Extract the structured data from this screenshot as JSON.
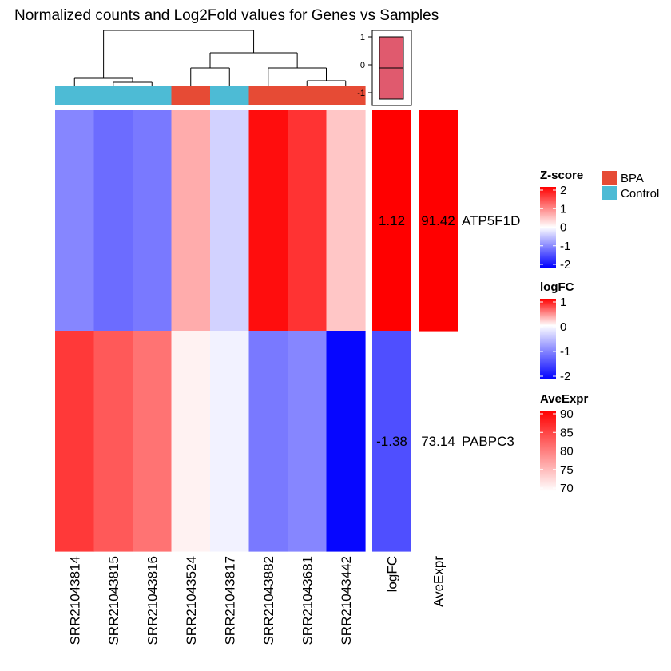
{
  "chart_data": {
    "type": "heatmap",
    "title": "Normalized counts and Log2Fold values for Genes vs Samples",
    "samples": [
      "SRR21043814",
      "SRR21043815",
      "SRR21043816",
      "SRR21043524",
      "SRR21043817",
      "SRR21043882",
      "SRR21043681",
      "SRR21043442"
    ],
    "sample_groups": [
      "Control",
      "Control",
      "Control",
      "BPA",
      "Control",
      "BPA",
      "BPA",
      "BPA"
    ],
    "genes": [
      "ATP5F1D",
      "PABPC3"
    ],
    "zscores": [
      [
        -0.95,
        -1.15,
        -1.05,
        0.65,
        -0.35,
        1.9,
        1.6,
        0.45
      ],
      [
        1.55,
        1.3,
        1.1,
        0.1,
        -0.1,
        -1.05,
        -0.95,
        -1.95
      ]
    ],
    "stat_columns": [
      "logFC",
      "AveExpr"
    ],
    "logFC": [
      1.12,
      -1.38
    ],
    "logFC_labels": [
      "1.12",
      "-1.38"
    ],
    "AveExpr": [
      91.42,
      73.14
    ],
    "AveExpr_labels": [
      "91.42",
      "73.14"
    ],
    "group_colors": {
      "BPA": "#e64b35",
      "Control": "#4dbbd5"
    },
    "boxplot": {
      "ticks": [
        "1",
        "0",
        "-1"
      ],
      "min": -1,
      "q1": -1,
      "median": 0,
      "q3": 1,
      "max": 1,
      "fill": "#e05a6e"
    },
    "legends": {
      "zscore": {
        "title": "Z-score",
        "ticks": [
          "2",
          "1",
          "0",
          "-1",
          "-2"
        ],
        "colors": [
          "#ff0000",
          "#ffffff",
          "#0000ff"
        ]
      },
      "logfc": {
        "title": "logFC",
        "ticks": [
          "1",
          "0",
          "-1",
          "-2"
        ],
        "colors": [
          "#ff0000",
          "#ffffff",
          "#0000ff"
        ]
      },
      "aveexpr": {
        "title": "AveExpr",
        "ticks": [
          "90",
          "85",
          "80",
          "75",
          "70"
        ],
        "colors": [
          "#ff0000",
          "#ffffff"
        ]
      },
      "groups": [
        "BPA",
        "Control"
      ]
    }
  }
}
